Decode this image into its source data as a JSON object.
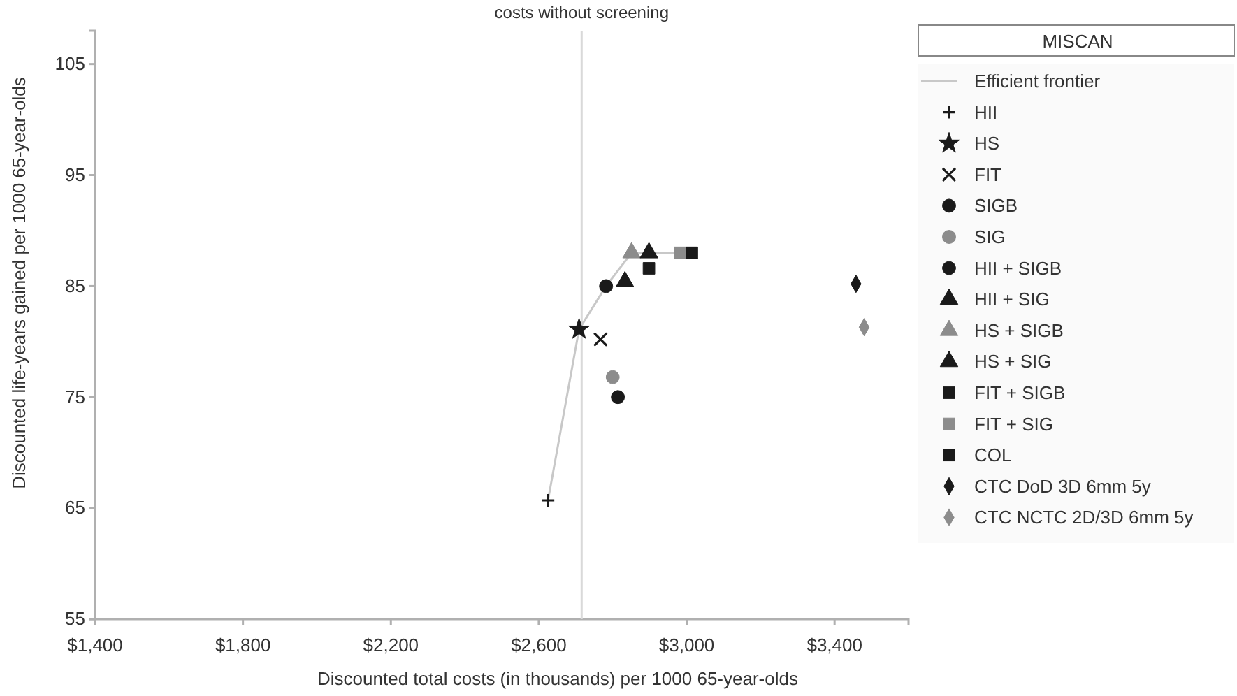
{
  "chart_data": {
    "type": "scatter",
    "xlabel": "Discounted total costs (in thousands) per 1000 65-year-olds",
    "ylabel": "Discounted life-years gained per 1000 65-year-olds",
    "legend_title": "MISCAN",
    "legend": "right",
    "grid": false,
    "xlim": [
      1400,
      3600
    ],
    "xticks": [
      {
        "value": 1400,
        "label": "$1,400"
      },
      {
        "value": 1800,
        "label": "$1,800"
      },
      {
        "value": 2200,
        "label": "$2,200"
      },
      {
        "value": 2600,
        "label": "$2,600"
      },
      {
        "value": 3000,
        "label": "$3,000"
      },
      {
        "value": 3400,
        "label": "$3,400"
      }
    ],
    "ylim": [
      55,
      108
    ],
    "yticks": [
      55,
      65,
      75,
      85,
      95,
      105
    ],
    "ref_lines": [
      {
        "axis": "x",
        "value": 2716,
        "label": "costs without screening",
        "color": "#d9d9d9"
      }
    ],
    "series": [
      {
        "name": "Efficient frontier",
        "type": "line",
        "color": "#c8c8c8",
        "marker": "none",
        "x": [
          2625,
          2709,
          2782,
          2851,
          2898,
          3014
        ],
        "values": [
          65.7,
          81.1,
          85.0,
          88.0,
          88.0,
          88.0
        ]
      },
      {
        "name": "HII",
        "color": "#1a1a1a",
        "marker": "cross",
        "x": [
          2625
        ],
        "values": [
          65.7
        ]
      },
      {
        "name": "HS",
        "color": "#1a1a1a",
        "marker": "star",
        "x": [
          2709
        ],
        "values": [
          81.1
        ]
      },
      {
        "name": "FIT",
        "color": "#1a1a1a",
        "marker": "x",
        "x": [
          2767
        ],
        "values": [
          80.2
        ]
      },
      {
        "name": "SIGB",
        "color": "#1a1a1a",
        "marker": "circle",
        "x": [
          2814
        ],
        "values": [
          75.0
        ]
      },
      {
        "name": "SIG",
        "color": "#8c8c8c",
        "marker": "circle",
        "x": [
          2800
        ],
        "values": [
          76.8
        ]
      },
      {
        "name": "HII + SIGB",
        "color": "#1a1a1a",
        "marker": "circle",
        "x": [
          2782
        ],
        "values": [
          85.0
        ]
      },
      {
        "name": "HII + SIG",
        "color": "#1a1a1a",
        "marker": "triangle",
        "x": [
          2833
        ],
        "values": [
          85.4
        ]
      },
      {
        "name": "HS + SIGB",
        "color": "#8c8c8c",
        "marker": "triangle",
        "x": [
          2851
        ],
        "values": [
          88.0
        ]
      },
      {
        "name": "HS + SIG",
        "color": "#1a1a1a",
        "marker": "triangle",
        "x": [
          2898
        ],
        "values": [
          88.0
        ]
      },
      {
        "name": "FIT + SIGB",
        "color": "#1a1a1a",
        "marker": "square",
        "x": [
          3014
        ],
        "values": [
          88.0
        ]
      },
      {
        "name": "FIT + SIG",
        "color": "#8c8c8c",
        "marker": "square",
        "x": [
          2982
        ],
        "values": [
          88.0
        ]
      },
      {
        "name": "COL",
        "color": "#1a1a1a",
        "marker": "square",
        "x": [
          2898
        ],
        "values": [
          86.6
        ]
      },
      {
        "name": "CTC DoD 3D 6mm 5y",
        "color": "#1a1a1a",
        "marker": "diamond",
        "x": [
          3458
        ],
        "values": [
          85.2
        ]
      },
      {
        "name": "CTC NCTC 2D/3D 6mm 5y",
        "color": "#8c8c8c",
        "marker": "diamond",
        "x": [
          3480
        ],
        "values": [
          81.3
        ]
      }
    ]
  }
}
